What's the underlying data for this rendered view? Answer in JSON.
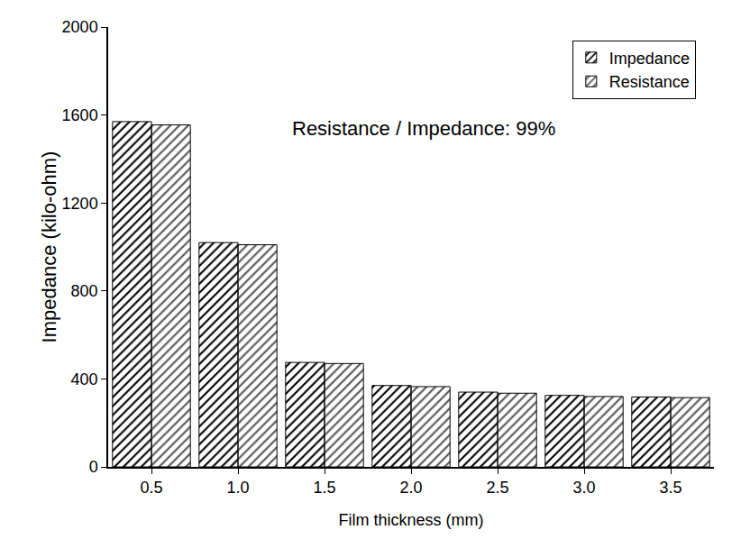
{
  "chart_data": {
    "type": "bar",
    "x_label": "Film thickness (mm)",
    "y_label": "Impedance (kilo-ohm)",
    "categories": [
      "0.5",
      "1.0",
      "1.5",
      "2.0",
      "2.5",
      "3.0",
      "3.5"
    ],
    "series": [
      {
        "name": "Impedance",
        "color": "#3a3a3a",
        "values": [
          1570,
          1020,
          475,
          370,
          340,
          325,
          318
        ]
      },
      {
        "name": "Resistance",
        "color": "#bdbdbd",
        "values": [
          1555,
          1010,
          470,
          365,
          335,
          320,
          315
        ]
      }
    ],
    "ylim": [
      0,
      2000
    ],
    "yticks": [
      0,
      400,
      800,
      1200,
      1600,
      2000
    ],
    "annotations": [
      "Resistance / Impedance: 99%"
    ],
    "legend": "top-right",
    "grid": false
  }
}
